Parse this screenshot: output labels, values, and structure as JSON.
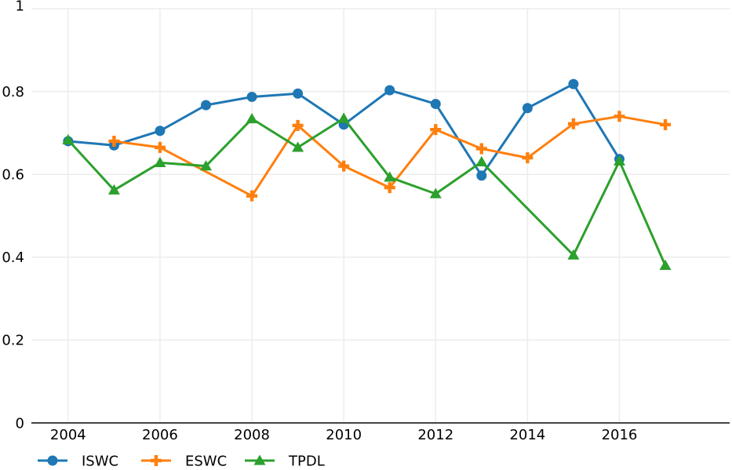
{
  "chart_data": {
    "type": "line",
    "title": "",
    "xlabel": "",
    "ylabel": "",
    "xlim": [
      2003.2,
      2018.4
    ],
    "ylim": [
      0,
      1
    ],
    "x_ticks": [
      2004,
      2006,
      2008,
      2010,
      2012,
      2014,
      2016
    ],
    "x_tick_labels": [
      "2004",
      "2006",
      "2008",
      "2010",
      "2012",
      "2014",
      "2016"
    ],
    "y_ticks": [
      0,
      0.2,
      0.4,
      0.6,
      0.8,
      1
    ],
    "y_tick_labels": [
      "0",
      "0.2",
      "0.4",
      "0.6",
      "0.8",
      "1"
    ],
    "grid": true,
    "legend_position": "bottom-left",
    "series": [
      {
        "name": "ISWC",
        "color": "#1f77b4",
        "marker": "circle",
        "points": [
          [
            2004,
            0.68
          ],
          [
            2005,
            0.67
          ],
          [
            2006,
            0.705
          ],
          [
            2007,
            0.767
          ],
          [
            2008,
            0.787
          ],
          [
            2009,
            0.795
          ],
          [
            2010,
            0.72
          ],
          [
            2011,
            0.803
          ],
          [
            2012,
            0.77
          ],
          [
            2013,
            0.597
          ],
          [
            2014,
            0.76
          ],
          [
            2015,
            0.818
          ],
          [
            2016,
            0.637
          ]
        ]
      },
      {
        "name": "ESWC",
        "color": "#ff7f0e",
        "marker": "cross",
        "points": [
          [
            2005,
            0.68
          ],
          [
            2006,
            0.665
          ],
          [
            2008,
            0.548
          ],
          [
            2009,
            0.718
          ],
          [
            2010,
            0.62
          ],
          [
            2011,
            0.568
          ],
          [
            2012,
            0.708
          ],
          [
            2013,
            0.662
          ],
          [
            2014,
            0.64
          ],
          [
            2015,
            0.722
          ],
          [
            2016,
            0.74
          ],
          [
            2017,
            0.72
          ]
        ]
      },
      {
        "name": "TPDL",
        "color": "#2ca02c",
        "marker": "triangle",
        "points": [
          [
            2004,
            0.683
          ],
          [
            2005,
            0.562
          ],
          [
            2006,
            0.628
          ],
          [
            2007,
            0.62
          ],
          [
            2008,
            0.734
          ],
          [
            2009,
            0.665
          ],
          [
            2010,
            0.735
          ],
          [
            2011,
            0.593
          ],
          [
            2012,
            0.553
          ],
          [
            2013,
            0.63
          ],
          [
            2015,
            0.405
          ],
          [
            2016,
            0.632
          ],
          [
            2017,
            0.38
          ]
        ]
      }
    ]
  }
}
